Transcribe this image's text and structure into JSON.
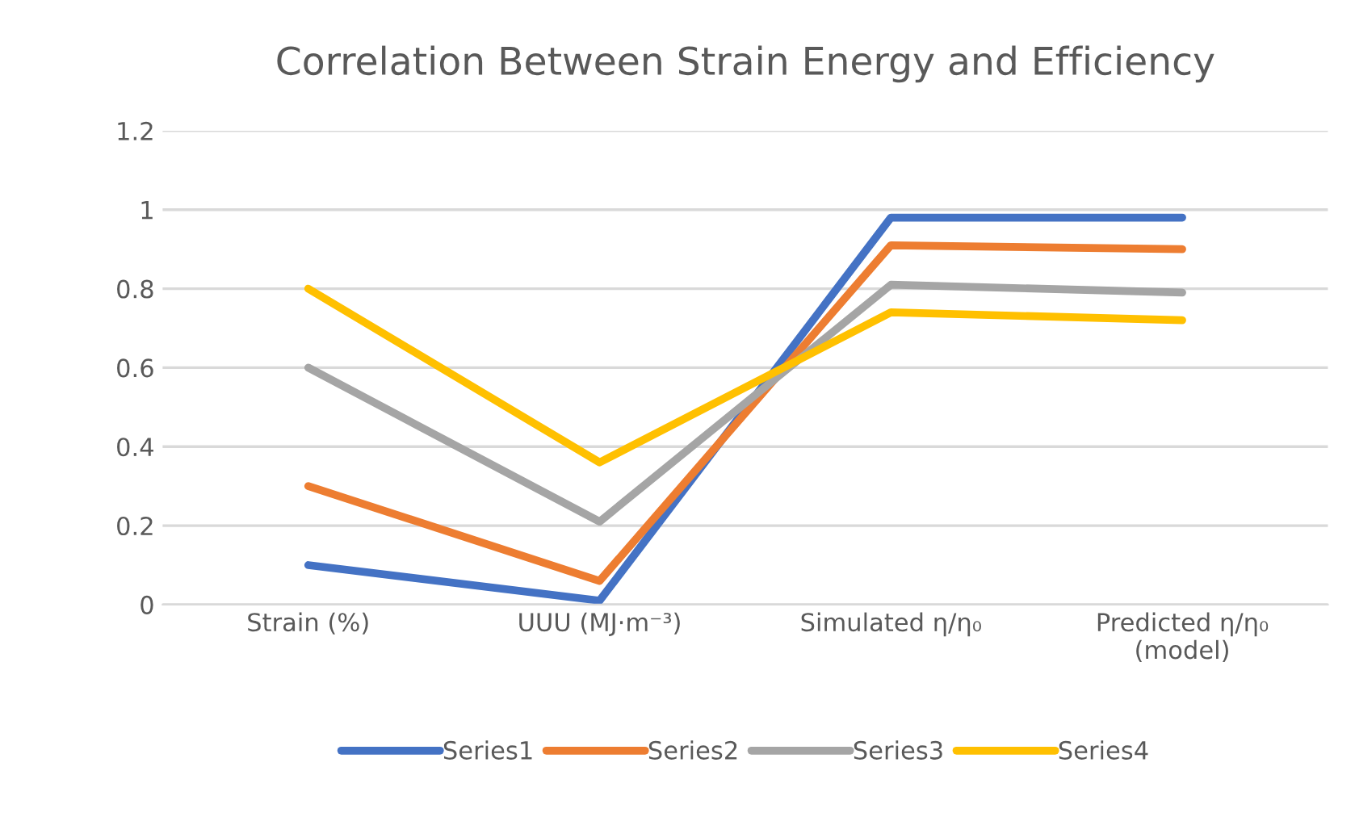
{
  "chart_data": {
    "type": "line",
    "title": "Correlation Between Strain Energy and Efficiency",
    "categories": [
      "Strain (%)",
      "UUU (MJ·m⁻³)",
      "Simulated η/η₀",
      "Predicted η/η₀\n(model)"
    ],
    "series": [
      {
        "name": "Series1",
        "color": "#4472c4",
        "values": [
          0.1,
          0.01,
          0.98,
          0.98
        ]
      },
      {
        "name": "Series2",
        "color": "#ed7d31",
        "values": [
          0.3,
          0.06,
          0.91,
          0.9
        ]
      },
      {
        "name": "Series3",
        "color": "#a5a5a5",
        "values": [
          0.6,
          0.21,
          0.81,
          0.79
        ]
      },
      {
        "name": "Series4",
        "color": "#ffc000",
        "values": [
          0.8,
          0.36,
          0.74,
          0.72
        ]
      }
    ],
    "ylim": [
      0,
      1.2
    ],
    "yticks": [
      0,
      0.2,
      0.4,
      0.6,
      0.8,
      1,
      1.2
    ],
    "grid": "y",
    "legend": "bottom",
    "marker": "none",
    "line_style": "solid"
  }
}
